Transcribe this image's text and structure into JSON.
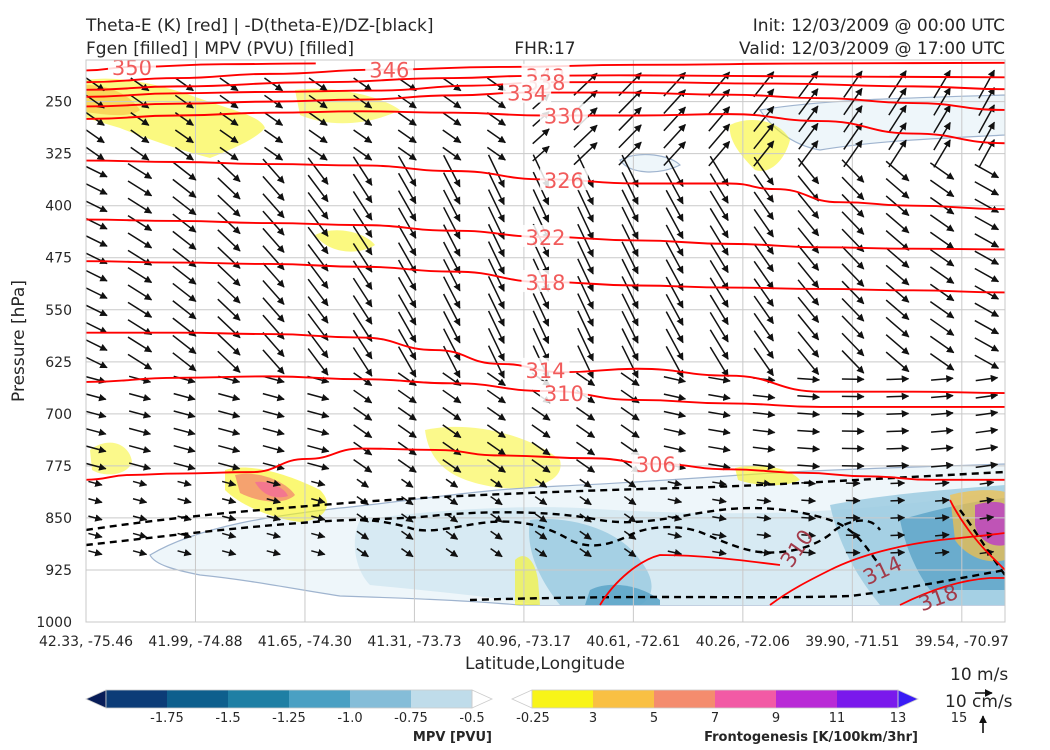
{
  "header": {
    "title_left_1": "Theta-E (K) [red] | -D(theta-E)/DZ-[black]",
    "title_left_2": "Fgen [filled] | MPV (PVU) [filled]",
    "title_center": "FHR:17",
    "title_right_1": "Init: 12/03/2009 @ 00:00 UTC",
    "title_right_2": "Valid: 12/03/2009 @ 17:00 UTC"
  },
  "chart_data": {
    "type": "cross-section",
    "xlabel": "Latitude,Longitude",
    "ylabel": "Pressure [hPa]",
    "x_ticks": [
      "42.33, -75.46",
      "41.99, -74.88",
      "41.65, -74.30",
      "41.31, -73.73",
      "40.96, -73.17",
      "40.61, -72.61",
      "40.26, -72.06",
      "39.90, -71.51",
      "39.54, -70.97"
    ],
    "y_ticks": [
      250,
      325,
      400,
      475,
      550,
      625,
      700,
      775,
      850,
      925,
      1000
    ],
    "ylim": [
      1000,
      190
    ],
    "grid": true,
    "theta_e_contours": [
      {
        "value": 350,
        "label": "350",
        "points": [
          [
            0,
            205
          ],
          [
            0.05,
            200
          ],
          [
            0.15,
            196
          ],
          [
            0.25,
            195
          ]
        ]
      },
      {
        "value": 346,
        "label": "346",
        "points": [
          [
            0,
            222
          ],
          [
            0.1,
            216
          ],
          [
            0.2,
            210
          ],
          [
            0.32,
            204
          ],
          [
            0.45,
            200
          ],
          [
            0.6,
            197
          ],
          [
            0.8,
            195
          ],
          [
            1,
            194
          ]
        ]
      },
      {
        "value": 342,
        "label": "342",
        "points": [
          [
            0,
            233
          ],
          [
            0.1,
            228
          ],
          [
            0.25,
            222
          ],
          [
            0.4,
            216
          ],
          [
            0.48,
            213
          ],
          [
            0.58,
            212
          ],
          [
            0.7,
            213
          ],
          [
            0.85,
            214
          ],
          [
            1,
            215
          ]
        ]
      },
      {
        "value": 338,
        "label": "338",
        "points": [
          [
            0,
            243
          ],
          [
            0.1,
            238
          ],
          [
            0.2,
            236
          ],
          [
            0.32,
            234
          ],
          [
            0.42,
            227
          ],
          [
            0.5,
            222
          ],
          [
            0.6,
            222
          ],
          [
            0.75,
            224
          ],
          [
            0.9,
            228
          ],
          [
            1,
            232
          ]
        ]
      },
      {
        "value": 334,
        "label": "334",
        "points": [
          [
            0,
            257
          ],
          [
            0.1,
            253
          ],
          [
            0.2,
            250
          ],
          [
            0.3,
            247
          ],
          [
            0.4,
            241
          ],
          [
            0.48,
            237
          ],
          [
            0.58,
            237
          ],
          [
            0.7,
            240
          ],
          [
            0.8,
            245
          ],
          [
            0.9,
            252
          ],
          [
            1,
            262
          ]
        ]
      },
      {
        "value": 330,
        "label": "330",
        "points": [
          [
            0,
            275
          ],
          [
            0.1,
            270
          ],
          [
            0.2,
            266
          ],
          [
            0.3,
            264
          ],
          [
            0.4,
            266
          ],
          [
            0.5,
            270
          ],
          [
            0.6,
            270
          ],
          [
            0.7,
            268
          ],
          [
            0.8,
            278
          ],
          [
            0.9,
            296
          ],
          [
            1,
            310
          ]
        ]
      },
      {
        "value": 326,
        "label": "326",
        "points": [
          [
            0,
            335
          ],
          [
            0.1,
            337
          ],
          [
            0.2,
            340
          ],
          [
            0.3,
            342
          ],
          [
            0.4,
            350
          ],
          [
            0.5,
            362
          ],
          [
            0.6,
            368
          ],
          [
            0.7,
            368
          ],
          [
            0.75,
            376
          ],
          [
            0.82,
            395
          ],
          [
            0.9,
            400
          ],
          [
            1,
            405
          ]
        ]
      },
      {
        "value": 322,
        "label": "322",
        "points": [
          [
            0,
            420
          ],
          [
            0.1,
            422
          ],
          [
            0.2,
            425
          ],
          [
            0.3,
            428
          ],
          [
            0.4,
            436
          ],
          [
            0.5,
            445
          ],
          [
            0.6,
            450
          ],
          [
            0.7,
            455
          ],
          [
            0.8,
            460
          ],
          [
            0.9,
            462
          ],
          [
            1,
            463
          ]
        ]
      },
      {
        "value": 318,
        "label": "318",
        "points": [
          [
            0,
            480
          ],
          [
            0.1,
            482
          ],
          [
            0.2,
            484
          ],
          [
            0.3,
            488
          ],
          [
            0.4,
            495
          ],
          [
            0.5,
            510
          ],
          [
            0.6,
            515
          ],
          [
            0.7,
            518
          ],
          [
            0.8,
            520
          ],
          [
            0.9,
            522
          ],
          [
            1,
            525
          ]
        ]
      },
      {
        "value": 314,
        "label": "314",
        "points": [
          [
            0,
            583
          ],
          [
            0.1,
            583
          ],
          [
            0.2,
            585
          ],
          [
            0.3,
            590
          ],
          [
            0.38,
            608
          ],
          [
            0.45,
            628
          ],
          [
            0.52,
            640
          ],
          [
            0.6,
            635
          ],
          [
            0.7,
            645
          ],
          [
            0.8,
            668
          ],
          [
            0.9,
            668
          ],
          [
            1,
            670
          ]
        ]
      },
      {
        "value": 310,
        "label": "310",
        "points": [
          [
            0,
            654
          ],
          [
            0.1,
            648
          ],
          [
            0.2,
            646
          ],
          [
            0.3,
            650
          ],
          [
            0.4,
            656
          ],
          [
            0.5,
            667
          ],
          [
            0.6,
            680
          ],
          [
            0.7,
            685
          ],
          [
            0.8,
            690
          ],
          [
            0.9,
            690
          ],
          [
            1,
            690
          ]
        ]
      },
      {
        "value": 306,
        "label": "306",
        "points": [
          [
            0,
            795
          ],
          [
            0.05,
            788
          ],
          [
            0.1,
            786
          ],
          [
            0.18,
            784
          ],
          [
            0.24,
            765
          ],
          [
            0.3,
            750
          ],
          [
            0.38,
            752
          ],
          [
            0.45,
            760
          ],
          [
            0.55,
            764
          ],
          [
            0.62,
            772
          ],
          [
            0.7,
            780
          ],
          [
            0.78,
            785
          ],
          [
            0.85,
            790
          ],
          [
            0.92,
            795
          ],
          [
            1,
            795
          ]
        ]
      }
    ],
    "theta_e_low_labels": [
      {
        "label": "310",
        "x": 0.78,
        "p": 900
      },
      {
        "label": "314",
        "x": 0.87,
        "p": 935
      },
      {
        "label": "318",
        "x": 0.93,
        "p": 975
      }
    ],
    "mpv_colorbar": {
      "label": "MPV [PVU]",
      "ticks": [
        "-1.75",
        "-1.5",
        "-1.25",
        "-1.0",
        "-0.75",
        "-0.5",
        "-0.25"
      ],
      "colors": [
        "#081d58",
        "#0c3c77",
        "#0e5f8d",
        "#1f7fa4",
        "#4aa0c3",
        "#85bdd8",
        "#bfdcea",
        "#ffffff"
      ]
    },
    "fgen_colorbar": {
      "label": "Frontogenesis [K/100km/3hr]",
      "ticks": [
        "3",
        "5",
        "7",
        "9",
        "11",
        "13",
        "15"
      ],
      "colors": [
        "#ffffff",
        "#f8f418",
        "#f9c043",
        "#f48c6e",
        "#f25aa5",
        "#b92ad6",
        "#7a19ec",
        "#3a1cf5"
      ]
    },
    "wind_reference": {
      "horizontal": "10 m/s",
      "vertical": "10 cm/s"
    }
  },
  "colors": {
    "theta_e": "#ff0000",
    "theta_e_label": "#f15b5b",
    "ddz": "#000000",
    "mpv_line": "#8fa8c8",
    "grid": "#c9c9c9",
    "axes_frame": "#c8c8c8"
  }
}
